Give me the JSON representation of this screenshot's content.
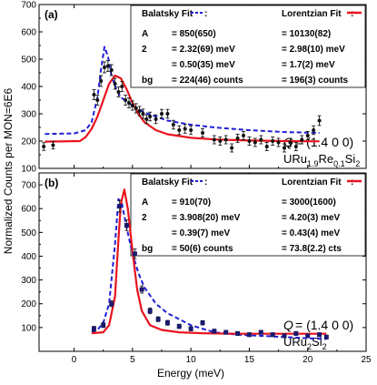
{
  "figure": {
    "ylabel": "Normalized Counts per MON=6E6",
    "xlabel": "Energy (meV)",
    "xticks": [
      0,
      5,
      10,
      15,
      20,
      25
    ],
    "xlim": [
      -3,
      25
    ]
  },
  "chart_data": [
    {
      "type": "scatter",
      "panel_label": "(a)",
      "ylim": [
        100,
        700
      ],
      "yticks": [
        100,
        200,
        300,
        400,
        500,
        600,
        700
      ],
      "q_label": "= (1.4 0 0)",
      "compound": {
        "base": "URu",
        "sub1": "1.9",
        "mid": "Re",
        "sub2": "0.1",
        "end": "Si",
        "sub3": "2"
      },
      "legend": {
        "balatsky": "Balatsky Fit",
        "lorentzian": "Lorentzian Fit",
        "rows": [
          {
            "label": "A",
            "balatsky": "= 850(650)",
            "lorentzian": "= 10130(82)"
          },
          {
            "label": "2",
            "balatsky": "= 2.32(69) meV",
            "lorentzian": "= 2.98(10) meV"
          },
          {
            "label": "",
            "balatsky": "= 0.50(35) meV",
            "lorentzian": "= 1.7(2) meV"
          },
          {
            "label": "bg",
            "balatsky": "= 224(46) counts",
            "lorentzian": "= 196(3) counts"
          }
        ]
      },
      "points": [
        {
          "x": -2.6,
          "y": 180,
          "err": 14
        },
        {
          "x": -1.8,
          "y": 185,
          "err": 14
        },
        {
          "x": 1.7,
          "y": 370,
          "err": 18
        },
        {
          "x": 2.0,
          "y": 350,
          "err": 18
        },
        {
          "x": 2.3,
          "y": 420,
          "err": 20
        },
        {
          "x": 2.6,
          "y": 470,
          "err": 20
        },
        {
          "x": 2.9,
          "y": 475,
          "err": 20
        },
        {
          "x": 3.2,
          "y": 460,
          "err": 20
        },
        {
          "x": 3.5,
          "y": 410,
          "err": 20
        },
        {
          "x": 3.8,
          "y": 380,
          "err": 18
        },
        {
          "x": 4.1,
          "y": 400,
          "err": 18
        },
        {
          "x": 4.4,
          "y": 350,
          "err": 18
        },
        {
          "x": 4.7,
          "y": 340,
          "err": 18
        },
        {
          "x": 5.0,
          "y": 330,
          "err": 17
        },
        {
          "x": 5.3,
          "y": 320,
          "err": 17
        },
        {
          "x": 5.6,
          "y": 310,
          "err": 17
        },
        {
          "x": 5.9,
          "y": 300,
          "err": 17
        },
        {
          "x": 6.2,
          "y": 280,
          "err": 16
        },
        {
          "x": 6.5,
          "y": 290,
          "err": 16
        },
        {
          "x": 7.0,
          "y": 280,
          "err": 16
        },
        {
          "x": 7.5,
          "y": 300,
          "err": 16
        },
        {
          "x": 8.0,
          "y": 300,
          "err": 16
        },
        {
          "x": 8.5,
          "y": 260,
          "err": 16
        },
        {
          "x": 9.0,
          "y": 240,
          "err": 16
        },
        {
          "x": 9.5,
          "y": 245,
          "err": 16
        },
        {
          "x": 10.0,
          "y": 240,
          "err": 16
        },
        {
          "x": 11.0,
          "y": 230,
          "err": 15
        },
        {
          "x": 12.0,
          "y": 205,
          "err": 15
        },
        {
          "x": 12.5,
          "y": 200,
          "err": 15
        },
        {
          "x": 13.0,
          "y": 205,
          "err": 15
        },
        {
          "x": 13.5,
          "y": 175,
          "err": 15
        },
        {
          "x": 14.0,
          "y": 210,
          "err": 15
        },
        {
          "x": 14.5,
          "y": 220,
          "err": 15
        },
        {
          "x": 15.0,
          "y": 200,
          "err": 15
        },
        {
          "x": 15.5,
          "y": 195,
          "err": 15
        },
        {
          "x": 16.0,
          "y": 205,
          "err": 15
        },
        {
          "x": 16.5,
          "y": 180,
          "err": 15
        },
        {
          "x": 17.0,
          "y": 200,
          "err": 15
        },
        {
          "x": 17.5,
          "y": 195,
          "err": 15
        },
        {
          "x": 18.0,
          "y": 175,
          "err": 15
        },
        {
          "x": 18.5,
          "y": 195,
          "err": 15
        },
        {
          "x": 19.0,
          "y": 180,
          "err": 15
        },
        {
          "x": 19.5,
          "y": 205,
          "err": 15
        },
        {
          "x": 20.0,
          "y": 220,
          "err": 15
        },
        {
          "x": 20.5,
          "y": 240,
          "err": 16
        },
        {
          "x": 21.0,
          "y": 275,
          "err": 18
        }
      ],
      "balatsky_curve": {
        "x": [
          -2.5,
          0,
          1,
          1.5,
          2,
          2.3,
          2.6,
          2.9,
          3.2,
          3.6,
          4,
          5,
          6,
          7,
          8,
          10,
          12,
          15,
          18,
          21
        ],
        "y": [
          226,
          228,
          240,
          270,
          360,
          460,
          545,
          510,
          440,
          390,
          360,
          330,
          305,
          290,
          275,
          260,
          250,
          240,
          233,
          230
        ]
      },
      "lorentzian_curve": {
        "x": [
          -2.5,
          0.5,
          1,
          1.5,
          2,
          2.5,
          3,
          3.5,
          4,
          4.5,
          5,
          5.5,
          6,
          7,
          8,
          10,
          12,
          15,
          18,
          21
        ],
        "y": [
          198,
          200,
          215,
          245,
          290,
          350,
          410,
          440,
          430,
          390,
          340,
          300,
          270,
          240,
          225,
          212,
          206,
          202,
          200,
          199
        ]
      }
    },
    {
      "type": "scatter",
      "panel_label": "(b)",
      "ylim": [
        0,
        750
      ],
      "yticks": [
        100,
        200,
        300,
        400,
        500,
        600,
        700
      ],
      "q_label": "= (1.4 0 0)",
      "compound": {
        "base": "URu",
        "sub1": "2",
        "mid": "Si",
        "sub2": "2",
        "end": "",
        "sub3": ""
      },
      "legend": {
        "balatsky": "Balatsky Fit",
        "lorentzian": "Lorentzian Fit",
        "rows": [
          {
            "label": "A",
            "balatsky": "= 910(70)",
            "lorentzian": "= 3000(1600)"
          },
          {
            "label": "2",
            "balatsky": "= 3.908(20) meV",
            "lorentzian": "= 4.20(3) meV"
          },
          {
            "label": "",
            "balatsky": "= 0.39(7) meV",
            "lorentzian": "= 0.43(4) meV"
          },
          {
            "label": "bg",
            "balatsky": "= 50(6) counts",
            "lorentzian": "= 73.8(2.2) cts"
          }
        ]
      },
      "points": [
        {
          "x": 1.7,
          "y": 95,
          "err": 10
        },
        {
          "x": 2.5,
          "y": 110,
          "err": 10
        },
        {
          "x": 3.2,
          "y": 200,
          "err": 12
        },
        {
          "x": 3.9,
          "y": 610,
          "err": 25
        },
        {
          "x": 4.5,
          "y": 530,
          "err": 22
        },
        {
          "x": 5.2,
          "y": 410,
          "err": 20
        },
        {
          "x": 5.8,
          "y": 260,
          "err": 15
        },
        {
          "x": 6.5,
          "y": 170,
          "err": 12
        },
        {
          "x": 7.2,
          "y": 135,
          "err": 10
        },
        {
          "x": 8.0,
          "y": 120,
          "err": 10
        },
        {
          "x": 9.0,
          "y": 105,
          "err": 9
        },
        {
          "x": 10.0,
          "y": 95,
          "err": 9
        },
        {
          "x": 11.0,
          "y": 120,
          "err": 9
        },
        {
          "x": 12.0,
          "y": 85,
          "err": 8
        },
        {
          "x": 13.0,
          "y": 80,
          "err": 8
        },
        {
          "x": 14.0,
          "y": 75,
          "err": 8
        },
        {
          "x": 15.0,
          "y": 70,
          "err": 8
        },
        {
          "x": 16.0,
          "y": 80,
          "err": 8
        },
        {
          "x": 17.0,
          "y": 70,
          "err": 8
        },
        {
          "x": 18.0,
          "y": 65,
          "err": 8
        },
        {
          "x": 19.0,
          "y": 75,
          "err": 8
        },
        {
          "x": 20.0,
          "y": 65,
          "err": 8
        },
        {
          "x": 21.0,
          "y": 70,
          "err": 8
        },
        {
          "x": 21.6,
          "y": 60,
          "err": 8
        }
      ],
      "balatsky_curve": {
        "x": [
          1.5,
          2,
          2.5,
          3,
          3.5,
          3.8,
          4.1,
          4.5,
          5,
          5.5,
          6,
          7,
          8,
          9,
          10,
          11,
          12,
          14,
          16,
          18,
          20,
          21.6
        ],
        "y": [
          80,
          90,
          120,
          200,
          450,
          640,
          620,
          520,
          410,
          330,
          270,
          200,
          160,
          135,
          110,
          95,
          80,
          70,
          65,
          60,
          55,
          52
        ]
      },
      "lorentzian_curve": {
        "x": [
          1.5,
          2.5,
          3,
          3.5,
          3.8,
          4.0,
          4.3,
          4.6,
          5.0,
          5.4,
          5.8,
          6.5,
          7.5,
          9,
          11,
          14,
          18,
          21.6
        ],
        "y": [
          76,
          80,
          110,
          230,
          470,
          620,
          680,
          600,
          420,
          260,
          170,
          110,
          90,
          80,
          76,
          74,
          74,
          74
        ]
      }
    }
  ],
  "colors": {
    "balatsky": "#1f1fd6",
    "lorentzian": "#e8141e",
    "points": "#111111",
    "points_b_fill": "#1a1a6e"
  }
}
